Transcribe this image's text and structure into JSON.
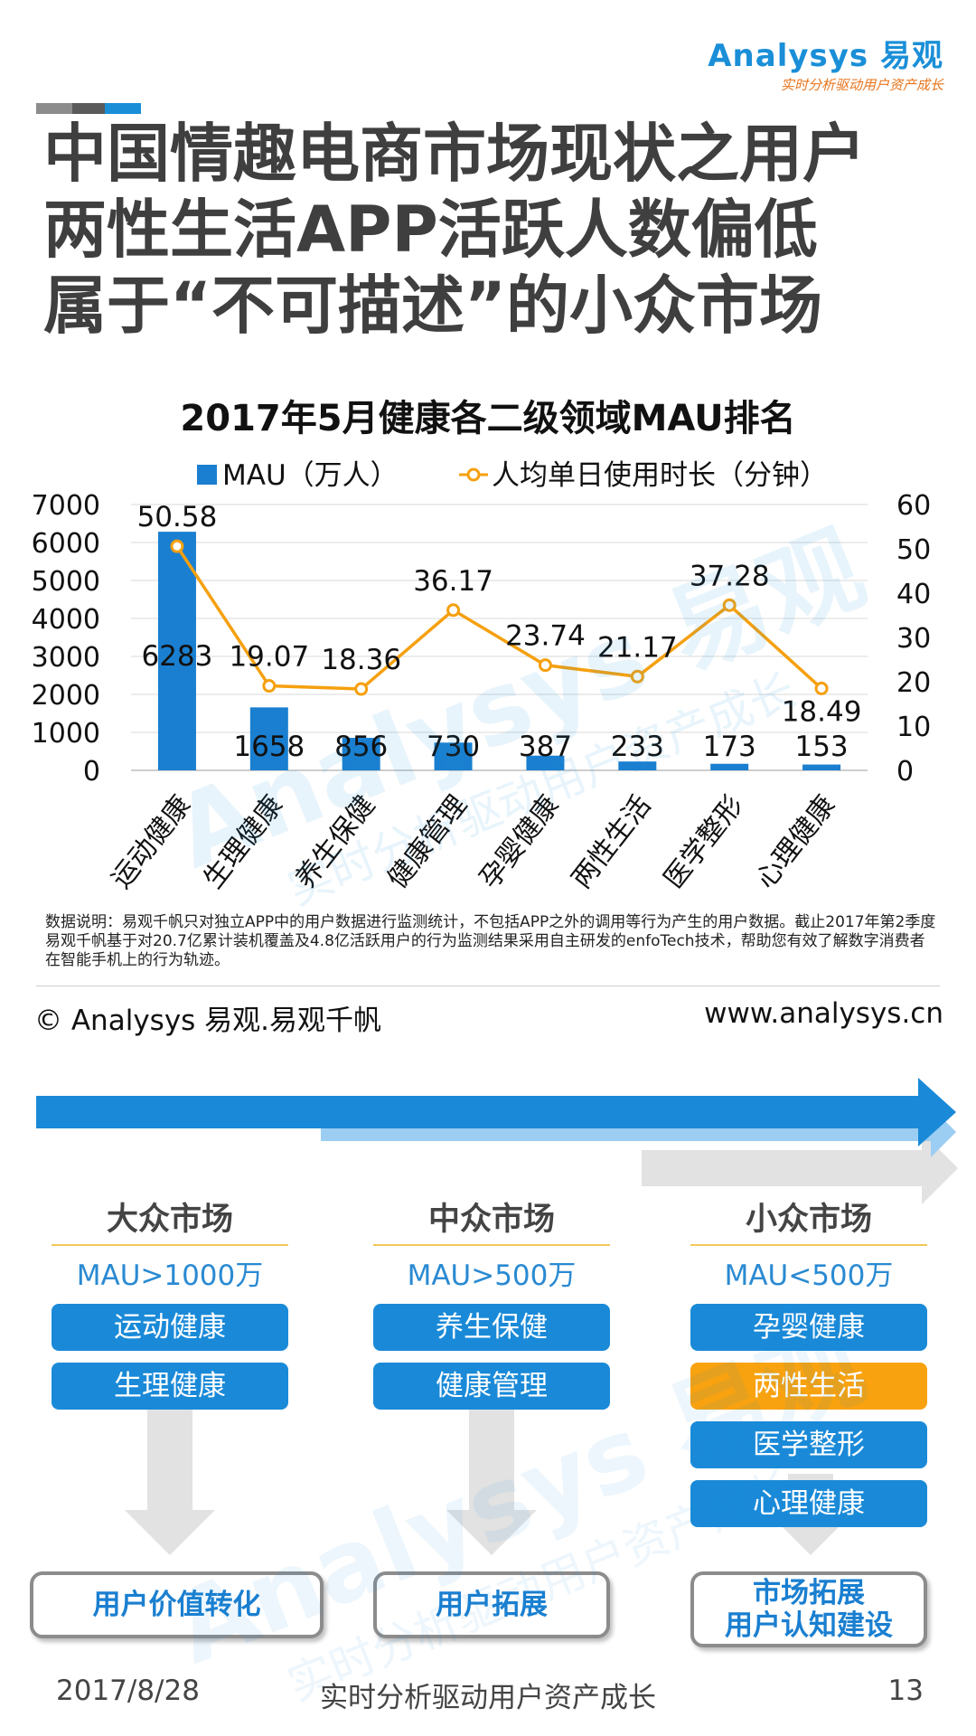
{
  "header": {
    "logo_brand": "Analysys",
    "logo_cn": "易观",
    "logo_slogan": "实时分析驱动用户资产成长",
    "accent_colors": [
      "#8c8c8c",
      "#5a5a5a",
      "#1a8fd8"
    ],
    "title_lines": [
      "中国情趣电商市场现状之用户",
      "两性生活APP活跃人数偏低",
      "属于“不可描述”的小众市场"
    ]
  },
  "chart_data": {
    "type": "bar",
    "title": "2017年5月健康各二级领域MAU排名",
    "categories": [
      "运动健康",
      "生理健康",
      "养生保健",
      "健康管理",
      "孕婴健康",
      "两性生活",
      "医学整形",
      "心理健康"
    ],
    "series": [
      {
        "name": "MAU（万人）",
        "type": "bar",
        "axis": "left",
        "color": "#1a7fd0",
        "values": [
          6283,
          1658,
          856,
          730,
          387,
          233,
          173,
          153
        ]
      },
      {
        "name": "人均单日使用时长（分钟）",
        "type": "line",
        "axis": "right",
        "color": "#f5a00f",
        "values": [
          50.58,
          19.07,
          18.36,
          36.17,
          23.74,
          21.17,
          37.28,
          18.49
        ]
      }
    ],
    "y_left": {
      "min": 0,
      "max": 7000,
      "ticks": [
        0,
        1000,
        2000,
        3000,
        4000,
        5000,
        6000,
        7000
      ]
    },
    "y_right": {
      "min": 0,
      "max": 60,
      "ticks": [
        0,
        10,
        20,
        30,
        40,
        50,
        60
      ]
    },
    "grid": true,
    "legend_position": "top"
  },
  "notes": {
    "data_note": "数据说明：易观千帆只对独立APP中的用户数据进行监测统计，不包括APP之外的调用等行为产生的用户数据。截止2017年第2季度易观千帆基于对20.7亿累计装机覆盖及4.8亿活跃用户的行为监测结果采用自主研发的enfoTech技术，帮助您有效了解数字消费者在智能手机上的行为轨迹。",
    "copyright": "© Analysys 易观.易观千帆",
    "website": "www.analysys.cn"
  },
  "markets": [
    {
      "heading": "大众市场",
      "criterion": "MAU>1000万",
      "items": [
        "运动健康",
        "生理健康"
      ],
      "outcome": "用户价值转化"
    },
    {
      "heading": "中众市场",
      "criterion": "MAU>500万",
      "items": [
        "养生保健",
        "健康管理"
      ],
      "outcome": "用户拓展"
    },
    {
      "heading": "小众市场",
      "criterion": "MAU<500万",
      "items": [
        "孕婴健康",
        "两性生活",
        "医学整形",
        "心理健康"
      ],
      "outcome_lines": [
        "市场拓展",
        "用户认知建设"
      ]
    }
  ],
  "colors": {
    "pill": "#1a8ad8",
    "highlight_pill": "#f8a210",
    "arrow_dark": "#1a8ad8",
    "arrow_light": "#9ccdf3",
    "arrow_gray": "#e2e2e2"
  },
  "watermark": {
    "brand": "Analysys 易观",
    "slogan": "实时分析驱动用户资产成长"
  },
  "footer": {
    "date": "2017/8/28",
    "slogan": "实时分析驱动用户资产成长",
    "page": "13"
  }
}
